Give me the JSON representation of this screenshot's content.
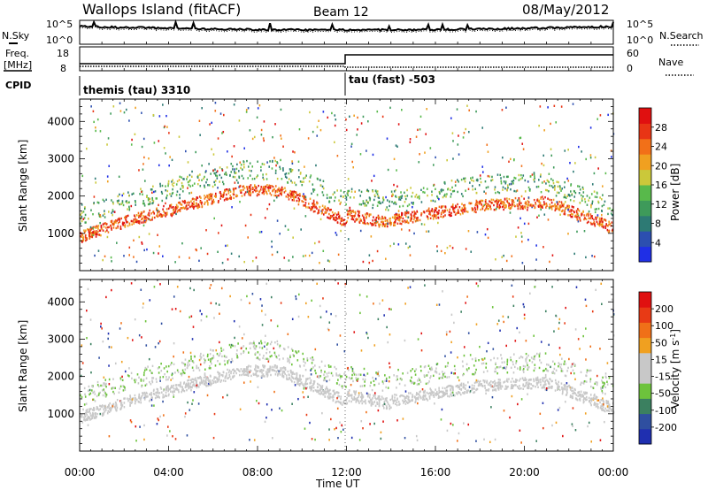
{
  "header": {
    "station": "Wallops Island (fitACF)",
    "beam": "Beam 12",
    "date": "08/May/2012"
  },
  "top_panels": {
    "nsky_label": "N.Sky",
    "nsearch_label": "N.Search",
    "noise_ticks": [
      "10^5",
      "10^0"
    ],
    "freq_label": "Freq.",
    "freq_unit": "[MHz]",
    "freq_ticks": [
      "18",
      "8"
    ],
    "nave_label": "Nave",
    "nave_ticks": [
      "60",
      "0"
    ],
    "cpid_label": "CPID",
    "cpid_segments": [
      {
        "label": "themis (tau) 3310",
        "start_hour": 0
      },
      {
        "label": "tau (fast) -503",
        "start_hour": 12
      }
    ]
  },
  "chart_data": [
    {
      "type": "heatmap",
      "name": "power-panel",
      "ylabel": "Slant Range [km]",
      "y_ticks": [
        1000,
        2000,
        3000,
        4000
      ],
      "ylim": [
        0,
        4600
      ],
      "xlim": [
        0,
        24
      ],
      "colorbar": {
        "label": "Power [dB]",
        "ticks": [
          "4",
          "8",
          "12",
          "16",
          "20",
          "24",
          "28"
        ],
        "colors": [
          "#1f2fe6",
          "#2c4fb0",
          "#2d7a74",
          "#3e9a5a",
          "#58b94b",
          "#cbc83a",
          "#f0a020",
          "#f27018",
          "#e83515",
          "#e01010"
        ]
      }
    },
    {
      "type": "heatmap",
      "name": "velocity-panel",
      "ylabel": "Slant Range [km]",
      "y_ticks": [
        1000,
        2000,
        3000,
        4000
      ],
      "ylim": [
        0,
        4600
      ],
      "xlim": [
        0,
        24
      ],
      "colorbar": {
        "label": "Velocity [m s",
        "label_sup": "-1",
        "label_end": "]",
        "ticks": [
          "200",
          "100",
          "50",
          "15",
          "-15",
          "-50",
          "-100",
          "-200"
        ],
        "colors": [
          "#1f2fb0",
          "#2f4fa0",
          "#3b8060",
          "#6dc33c",
          "#c8c8c8",
          "#c8c8c8",
          "#f0a020",
          "#f07018",
          "#e83a15",
          "#e01010"
        ]
      }
    }
  ],
  "x_axis": {
    "tick_labels": [
      "00:00",
      "04:00",
      "08:00",
      "12:00",
      "16:00",
      "20:00",
      "00:00"
    ],
    "tick_hours": [
      0,
      4,
      8,
      12,
      16,
      20,
      24
    ],
    "label": "Time UT"
  }
}
